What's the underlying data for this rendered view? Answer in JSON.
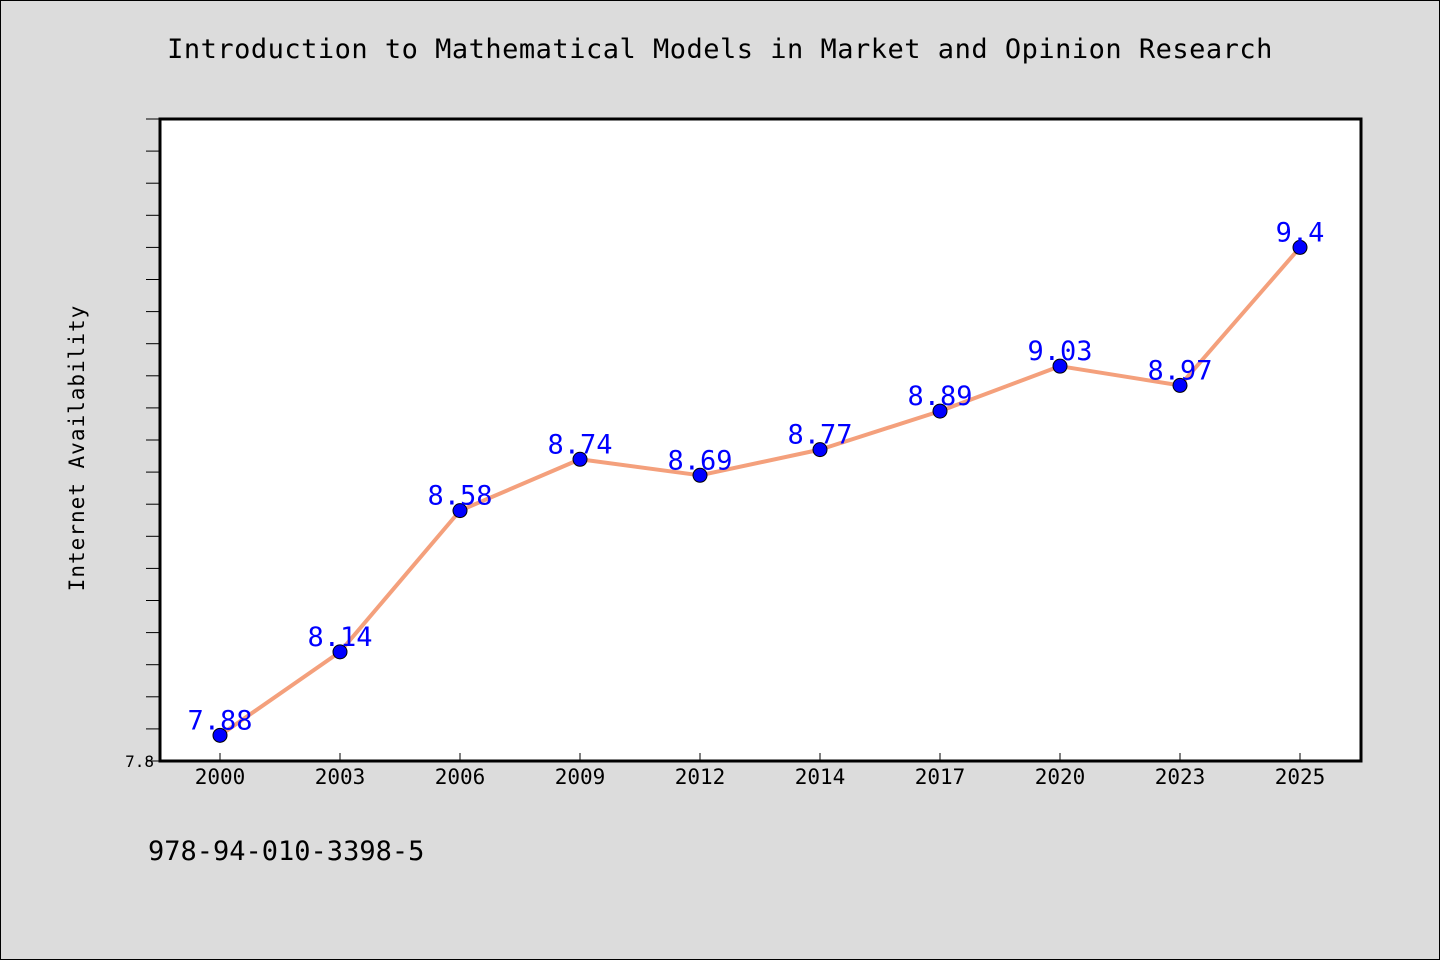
{
  "title": "Introduction to Mathematical Models in Market and Opinion Research",
  "footer_text": "978-94-010-3398-5",
  "chart_data": {
    "type": "line",
    "title": "Introduction to Mathematical Models in Market and Opinion Research",
    "xlabel": "",
    "ylabel": "Internet Availability",
    "categories": [
      "2000",
      "2003",
      "2006",
      "2009",
      "2012",
      "2014",
      "2017",
      "2020",
      "2023",
      "2025"
    ],
    "values": [
      7.88,
      8.14,
      8.58,
      8.74,
      8.69,
      8.77,
      8.89,
      9.03,
      8.97,
      9.4
    ],
    "data_labels": [
      "7.88",
      "8.14",
      "8.58",
      "8.74",
      "8.69",
      "8.77",
      "8.89",
      "9.03",
      "8.97",
      "9.4"
    ],
    "ylim": [
      7.8,
      9.8
    ],
    "ytick_labels": [
      "7.8"
    ],
    "grid": false,
    "line_color": "#f4a07c",
    "marker_color": "#0000ff",
    "label_color": "#0000ff",
    "background_color": "#dcdcdc",
    "plot_background": "#ffffff"
  }
}
